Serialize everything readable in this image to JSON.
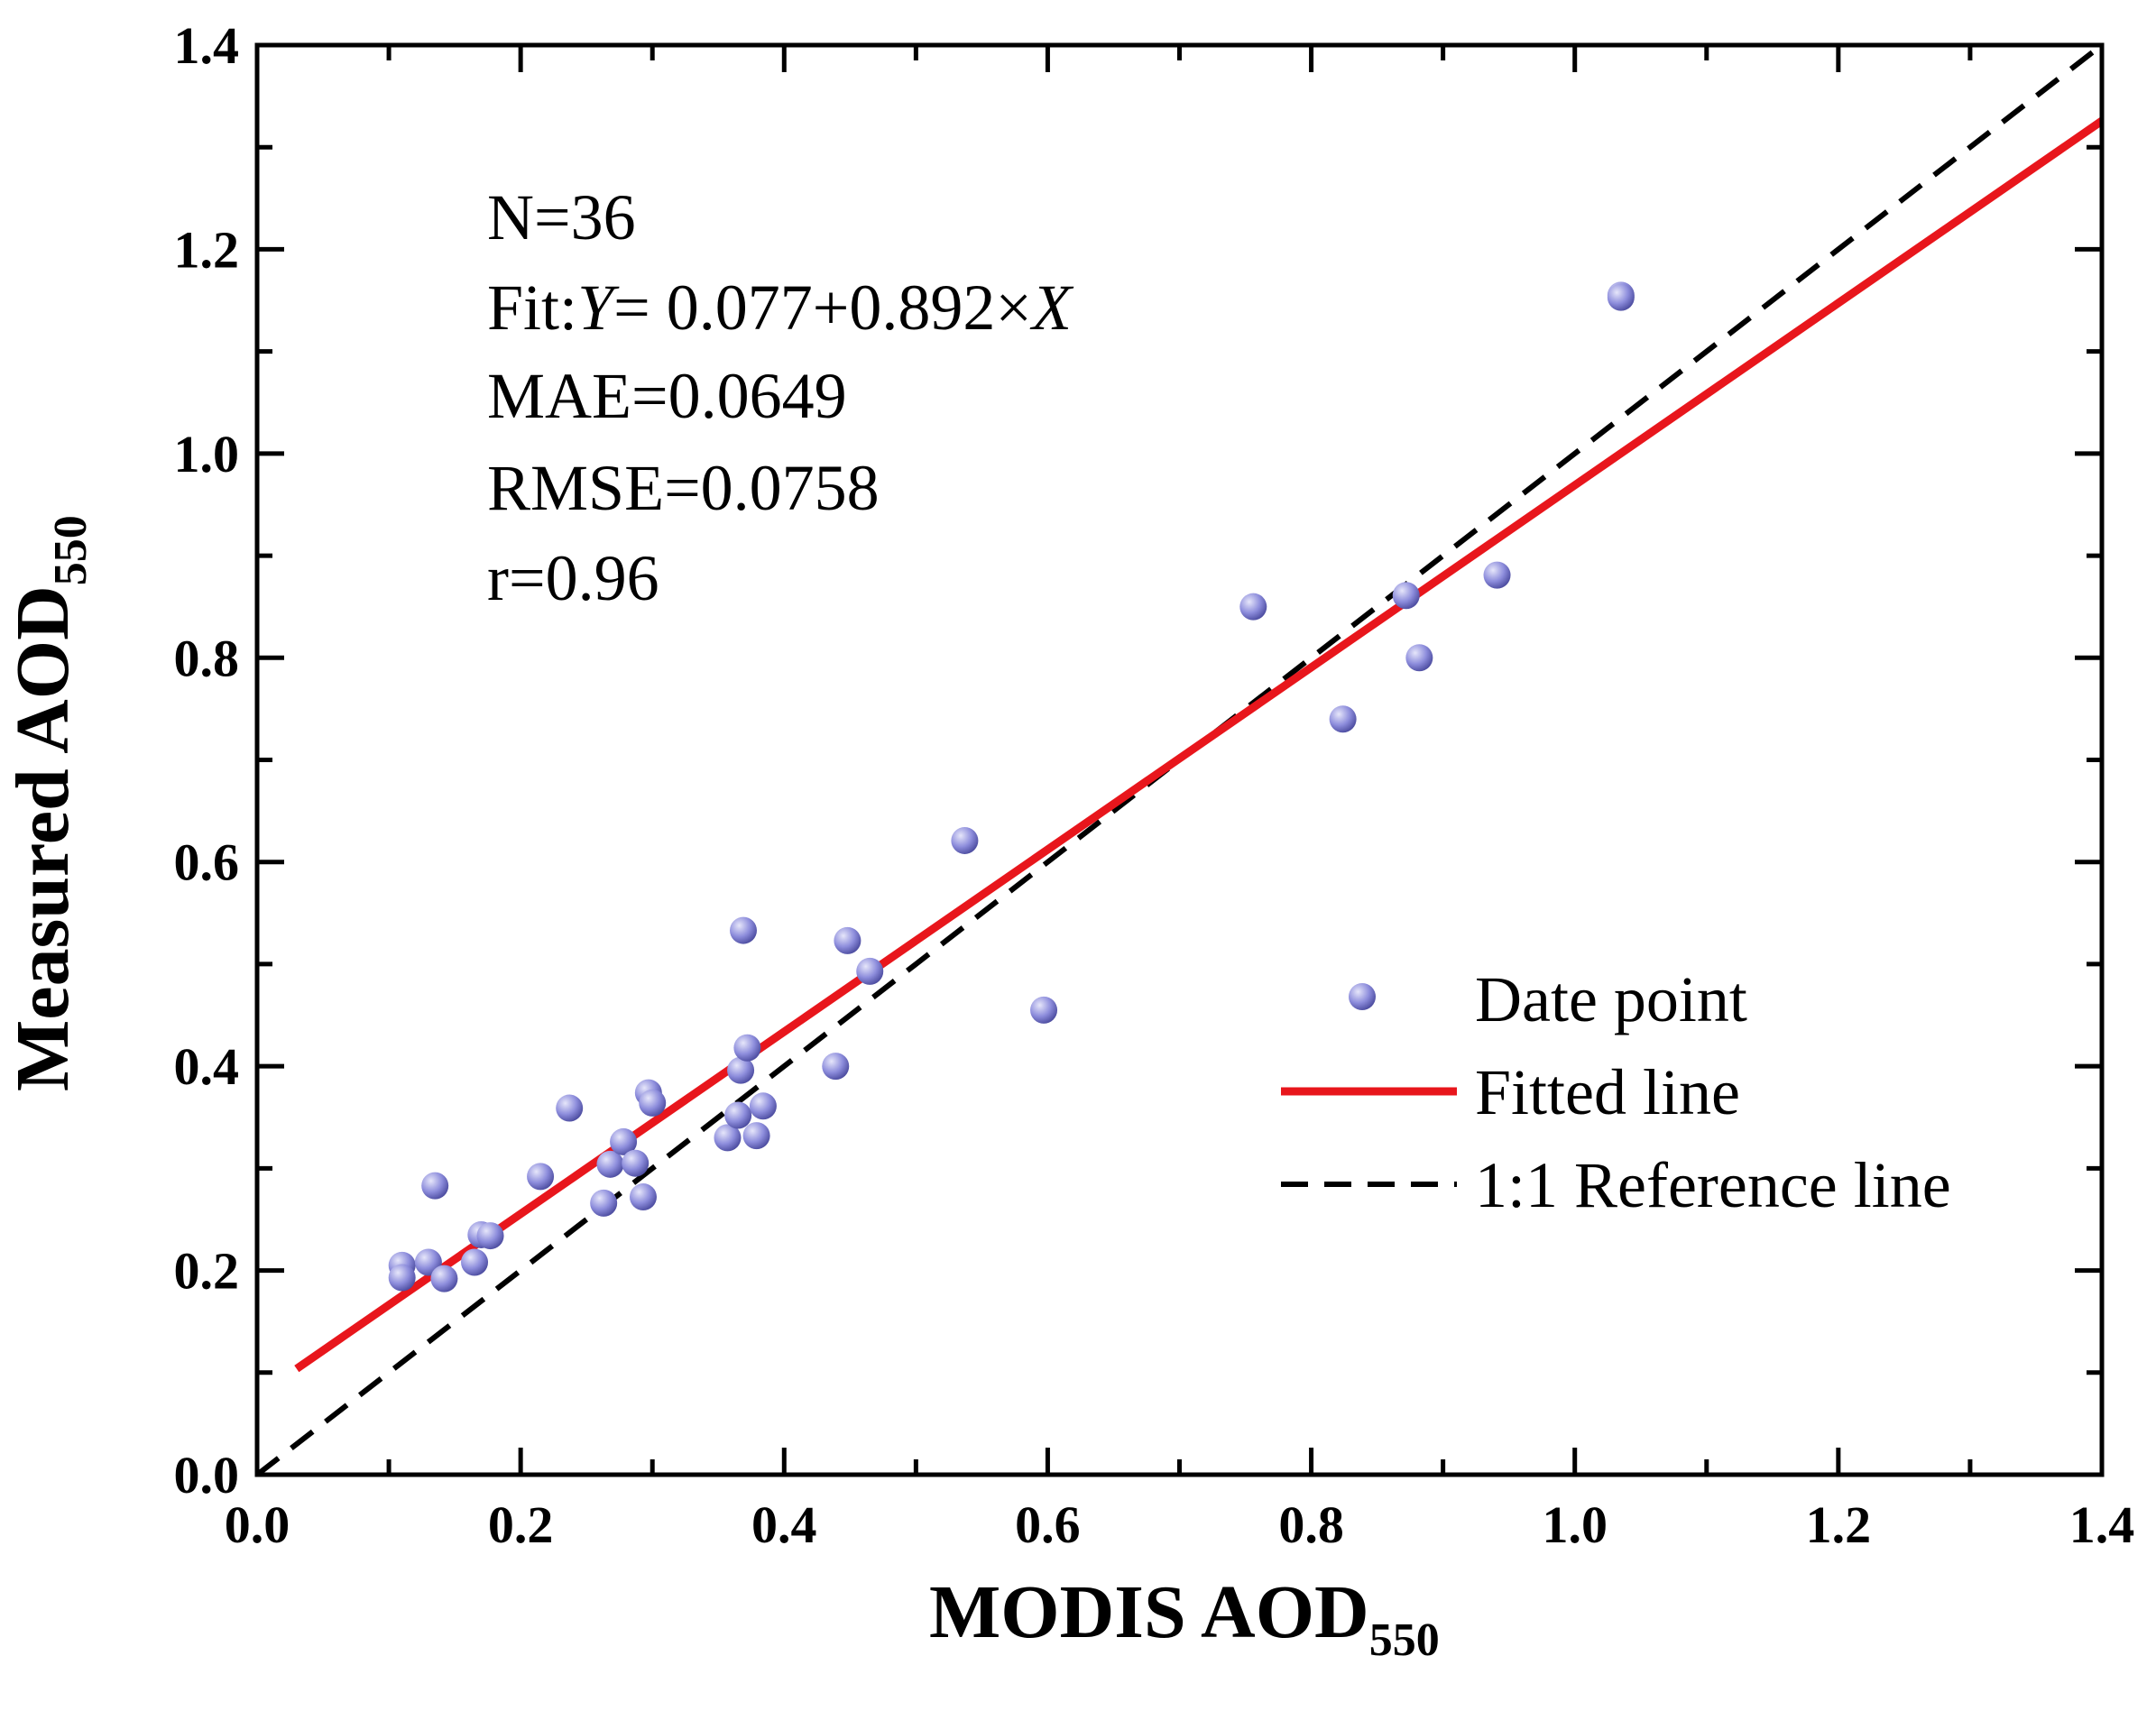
{
  "chart_data": {
    "type": "scatter",
    "xlabel": {
      "main": "MODIS AOD",
      "sub": "550"
    },
    "ylabel": {
      "main": "Measured AOD",
      "sub": "550"
    },
    "xlim": [
      0.0,
      1.4
    ],
    "ylim": [
      0.0,
      1.4
    ],
    "xticks": [
      "0.0",
      "0.2",
      "0.4",
      "0.6",
      "0.8",
      "1.0",
      "1.2",
      "1.4"
    ],
    "yticks": [
      "0.0",
      "0.2",
      "0.4",
      "0.6",
      "0.8",
      "1.0",
      "1.2",
      "1.4"
    ],
    "stats": {
      "n": "N=36",
      "fit_prefix": "Fit:",
      "fit_y": "Y",
      "fit_mid": "= 0.077+0.892×",
      "fit_x": "X",
      "mae": "MAE=0.0649",
      "rmse": "RMSE=0.0758",
      "r": "r=0.96"
    },
    "fit": {
      "intercept": 0.077,
      "slope": 0.892,
      "x_range": [
        0.03,
        1.4
      ]
    },
    "reference": {
      "x_range": [
        0.0,
        1.4
      ]
    },
    "legend": {
      "position": "bottom-right",
      "points": "Date point",
      "fitted": "Fitted line",
      "reference": "1:1 Reference line"
    },
    "colors": {
      "fit_line": "#e8161c",
      "point": "#8d8ddc",
      "point_highlight": "#e6e6fa",
      "point_edge": "#46469a",
      "reference": "#000000"
    },
    "points": [
      {
        "x": 0.11,
        "y": 0.205
      },
      {
        "x": 0.11,
        "y": 0.193
      },
      {
        "x": 0.13,
        "y": 0.208
      },
      {
        "x": 0.135,
        "y": 0.283
      },
      {
        "x": 0.142,
        "y": 0.192
      },
      {
        "x": 0.165,
        "y": 0.208
      },
      {
        "x": 0.17,
        "y": 0.235
      },
      {
        "x": 0.177,
        "y": 0.234
      },
      {
        "x": 0.215,
        "y": 0.292
      },
      {
        "x": 0.237,
        "y": 0.359
      },
      {
        "x": 0.263,
        "y": 0.266
      },
      {
        "x": 0.268,
        "y": 0.304
      },
      {
        "x": 0.278,
        "y": 0.326
      },
      {
        "x": 0.287,
        "y": 0.305
      },
      {
        "x": 0.293,
        "y": 0.272
      },
      {
        "x": 0.297,
        "y": 0.374
      },
      {
        "x": 0.3,
        "y": 0.364
      },
      {
        "x": 0.357,
        "y": 0.33
      },
      {
        "x": 0.365,
        "y": 0.352
      },
      {
        "x": 0.367,
        "y": 0.396
      },
      {
        "x": 0.369,
        "y": 0.533
      },
      {
        "x": 0.372,
        "y": 0.418
      },
      {
        "x": 0.379,
        "y": 0.332
      },
      {
        "x": 0.384,
        "y": 0.361
      },
      {
        "x": 0.439,
        "y": 0.4
      },
      {
        "x": 0.448,
        "y": 0.523
      },
      {
        "x": 0.465,
        "y": 0.493
      },
      {
        "x": 0.537,
        "y": 0.621
      },
      {
        "x": 0.597,
        "y": 0.455
      },
      {
        "x": 0.756,
        "y": 0.85
      },
      {
        "x": 0.824,
        "y": 0.74
      },
      {
        "x": 0.872,
        "y": 0.861
      },
      {
        "x": 0.882,
        "y": 0.8
      },
      {
        "x": 0.941,
        "y": 0.881
      },
      {
        "x": 1.035,
        "y": 1.155
      },
      {
        "x": 1.035,
        "y": 1.153
      }
    ]
  }
}
